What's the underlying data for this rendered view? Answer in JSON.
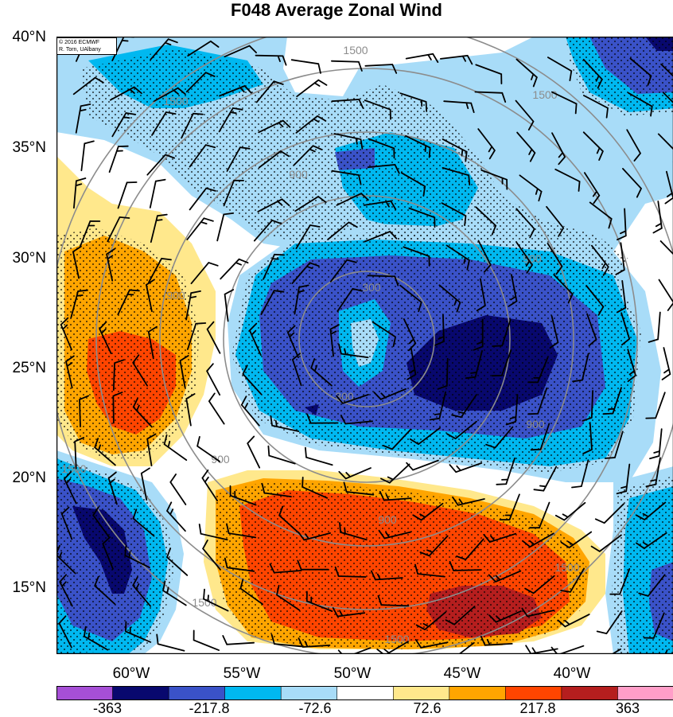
{
  "title": "F048 Average Zonal Wind",
  "credit": {
    "line1": "© 2016 ECMWF",
    "line2": "R. Torn, UAlbany"
  },
  "latitudes": [
    "40°N",
    "35°N",
    "30°N",
    "25°N",
    "20°N",
    "15°N"
  ],
  "longitudes": [
    "60°W",
    "55°W",
    "50°W",
    "45°W",
    "40°W"
  ],
  "colorbar": {
    "colors": [
      "#a64fd6",
      "#08086e",
      "#3a52c8",
      "#00b8f0",
      "#a8dcf8",
      "#ffffff",
      "#ffe88c",
      "#ffa500",
      "#ff4500",
      "#b51e1e",
      "#ff9ec8"
    ],
    "labels": [
      "-363",
      "-217.8",
      "-72.6",
      "72.6",
      "217.8",
      "363"
    ]
  },
  "contour_labels": [
    "1500",
    "1500",
    "1500",
    "900",
    "900",
    "900",
    "900",
    "900",
    "900",
    "300",
    "300",
    "1500",
    "1500",
    "1500",
    "1500"
  ],
  "colors": {
    "dark_blue": "#08086e",
    "mid_blue": "#3a52c8",
    "cyan": "#00b8f0",
    "light_blue": "#a8dcf8",
    "yellow": "#ffe88c",
    "orange": "#ffa500",
    "red_orange": "#ff4500",
    "dark_red": "#b51e1e",
    "contour": "#8c8c8c"
  }
}
